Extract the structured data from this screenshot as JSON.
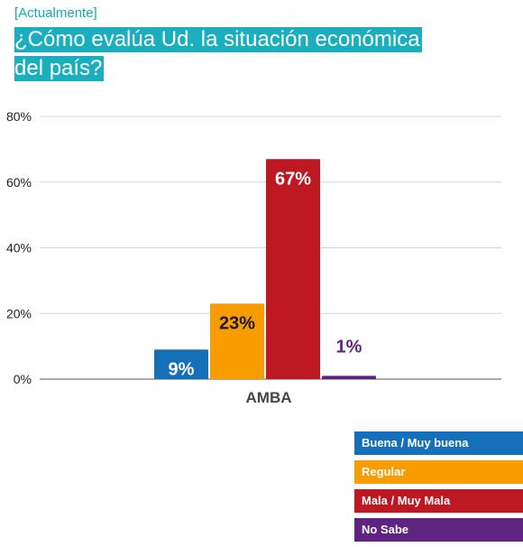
{
  "header": {
    "subtitle": "[Actualmente]",
    "title": "¿Cómo evalúa Ud. la situación económica del país?"
  },
  "chart_data": {
    "type": "bar",
    "categories": [
      "AMBA"
    ],
    "series": [
      {
        "name": "Buena / Muy buena",
        "values": [
          9
        ],
        "label": "9%",
        "color": "#1570b9"
      },
      {
        "name": "Regular",
        "values": [
          23
        ],
        "label": "23%",
        "color": "#f99c00"
      },
      {
        "name": "Mala / Muy Mala",
        "values": [
          67
        ],
        "label": "67%",
        "color": "#be1823"
      },
      {
        "name": "No Sabe",
        "values": [
          1
        ],
        "label": "1%",
        "color": "#5f2480"
      }
    ],
    "ylim": [
      0,
      80
    ],
    "yticks": [
      0,
      20,
      40,
      60,
      80
    ],
    "ytick_labels": [
      "0%",
      "20%",
      "40%",
      "60%",
      "80%"
    ],
    "grid": true,
    "legend_position": "bottom-right"
  }
}
